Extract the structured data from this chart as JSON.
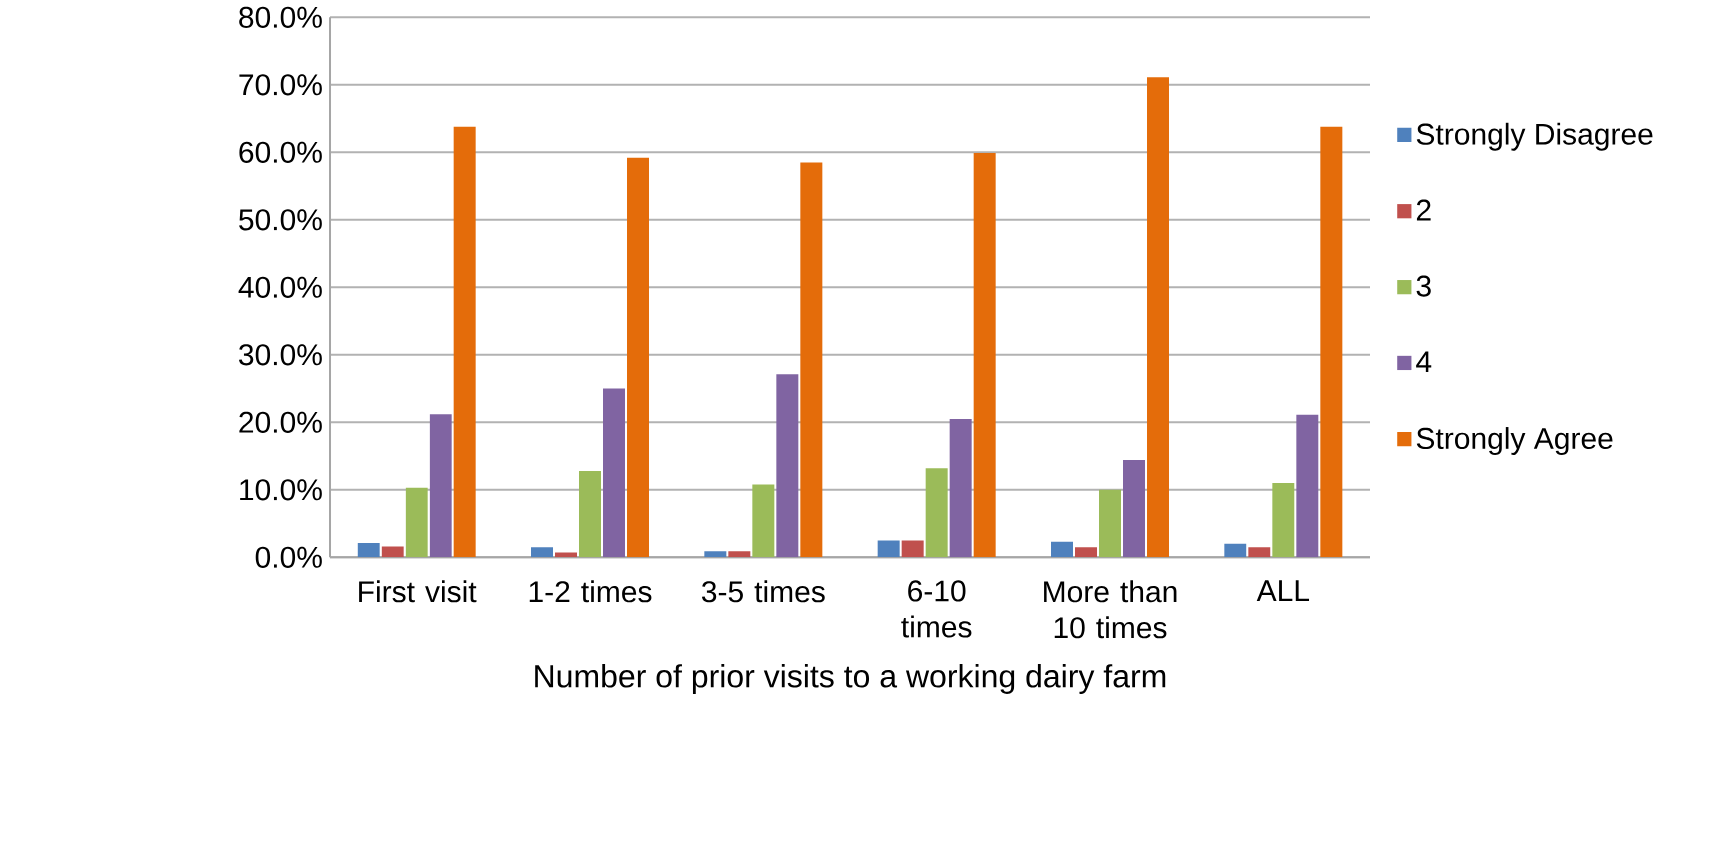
{
  "chart_data": {
    "type": "bar",
    "xlabel": "Number of prior visits to a working dairy farm",
    "categories": [
      "First visit",
      "1-2 times",
      "3-5 times",
      "6-10 times",
      "More than 10 times",
      "ALL"
    ],
    "series": [
      {
        "name": "Strongly Disagree",
        "color": "#4f81bd",
        "values": [
          2.1,
          1.5,
          0.9,
          2.5,
          2.3,
          2.0
        ]
      },
      {
        "name": "2",
        "color": "#c0504d",
        "values": [
          1.6,
          0.7,
          0.9,
          2.5,
          1.5,
          1.5
        ]
      },
      {
        "name": "3",
        "color": "#9bbb59",
        "values": [
          10.3,
          12.8,
          10.8,
          13.2,
          10.0,
          11.0
        ]
      },
      {
        "name": "4",
        "color": "#8064a2",
        "values": [
          21.2,
          25.0,
          27.1,
          20.5,
          14.4,
          21.1
        ]
      },
      {
        "name": "Strongly Agree",
        "color": "#e46c0a",
        "values": [
          63.8,
          59.2,
          58.5,
          59.9,
          71.1,
          63.8
        ]
      }
    ],
    "ylim": [
      0,
      80
    ],
    "yticks": [
      {
        "value": 0,
        "label": "0.0%"
      },
      {
        "value": 10,
        "label": "10.0%"
      },
      {
        "value": 20,
        "label": "20.0%"
      },
      {
        "value": 30,
        "label": "30.0%"
      },
      {
        "value": 40,
        "label": "40.0%"
      },
      {
        "value": 50,
        "label": "50.0%"
      },
      {
        "value": 60,
        "label": "60.0%"
      },
      {
        "value": 70,
        "label": "70.0%"
      },
      {
        "value": 80,
        "label": "80.0%"
      }
    ],
    "grid": "y",
    "legend": "right"
  }
}
